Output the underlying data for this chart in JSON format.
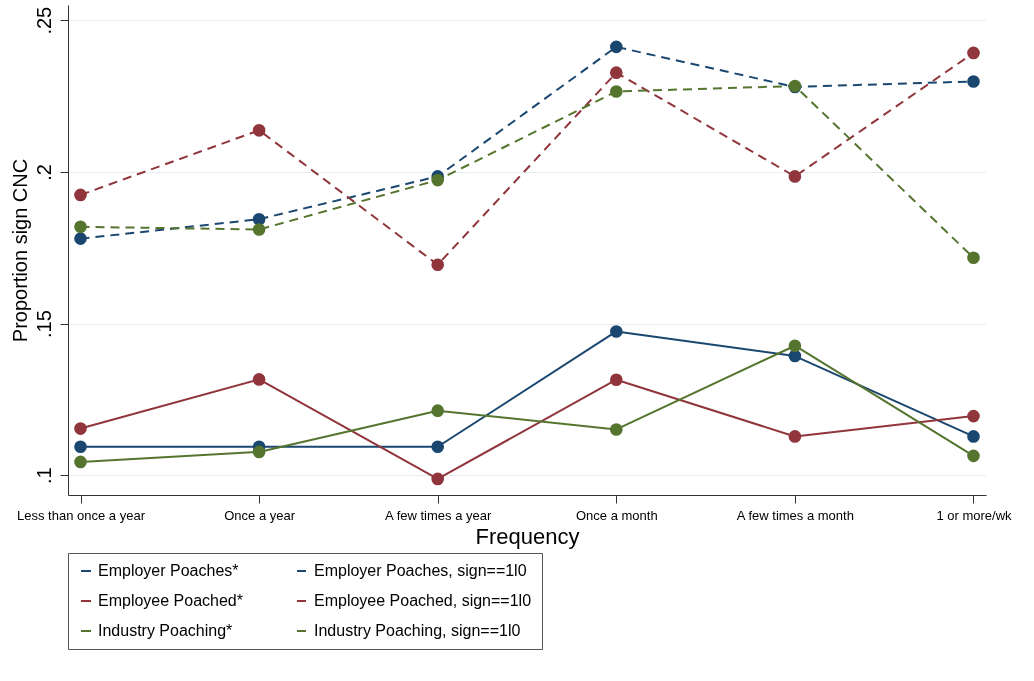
{
  "chart_data": {
    "type": "line",
    "xlabel": "Frequency",
    "ylabel": "Proportion sign CNC",
    "categories": [
      "Less than once a year",
      "Once a year",
      "A few times a year",
      "Once a month",
      "A few times a month",
      "1 or more/wk"
    ],
    "series": [
      {
        "name": "Employer Poaches*",
        "color": "#1a476f",
        "line_style": "solid",
        "values": [
          0.1094,
          0.1094,
          0.1094,
          0.1474,
          0.1393,
          0.1128
        ]
      },
      {
        "name": "Employer Poaches, sign==1l0",
        "color": "#1a476f",
        "line_style": "dashed",
        "values": [
          0.178,
          0.1844,
          0.1985,
          0.2412,
          0.228,
          0.2298
        ]
      },
      {
        "name": "Employee Poached*",
        "color": "#90353b",
        "line_style": "solid",
        "values": [
          0.1154,
          0.1316,
          0.0988,
          0.1315,
          0.1128,
          0.1195
        ]
      },
      {
        "name": "Employee Poached, sign==1l0",
        "color": "#90353b",
        "line_style": "dashed",
        "values": [
          0.1924,
          0.2137,
          0.1694,
          0.2327,
          0.1985,
          0.2392
        ]
      },
      {
        "name": "Industry Poaching*",
        "color": "#55752f",
        "line_style": "solid",
        "values": [
          0.1044,
          0.1077,
          0.1213,
          0.1151,
          0.1427,
          0.1064
        ]
      },
      {
        "name": "Industry Poaching, sign==1l0",
        "color": "#55752f",
        "line_style": "dashed",
        "values": [
          0.1819,
          0.181,
          0.1973,
          0.2265,
          0.2283,
          0.1717
        ]
      }
    ],
    "ylim": [
      0.0935,
      0.255
    ],
    "yticks": [
      {
        "value": 0.1,
        "label": ".1"
      },
      {
        "value": 0.15,
        "label": ".15"
      },
      {
        "value": 0.2,
        "label": ".2"
      },
      {
        "value": 0.25,
        "label": ".25"
      }
    ],
    "grid": "y",
    "legend": "bottom",
    "marker": "circle"
  }
}
